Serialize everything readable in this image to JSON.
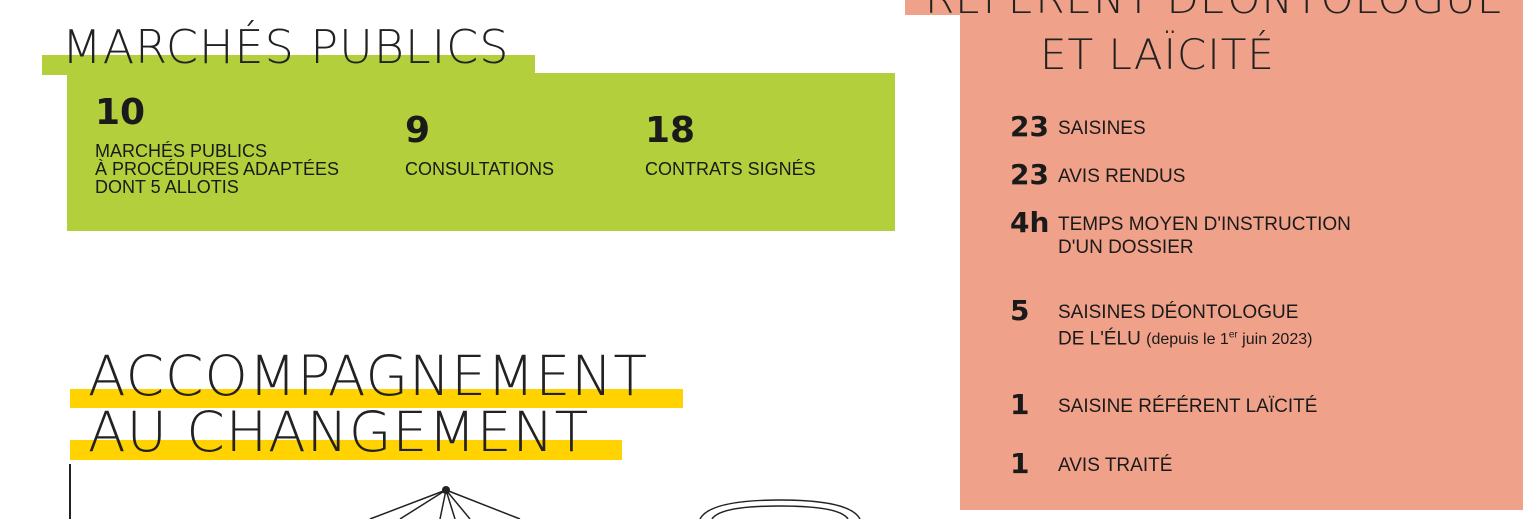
{
  "marches": {
    "title": "MARCHÉS PUBLICS",
    "stats": [
      {
        "number": "10",
        "lines": [
          "MARCHÉS PUBLICS",
          "À PROCÉDURES ADAPTÉES",
          "DONT 5 ALLOTIS"
        ]
      },
      {
        "number": "9",
        "lines": [
          "CONSULTATIONS"
        ]
      },
      {
        "number": "18",
        "lines": [
          "CONTRATS SIGNÉS"
        ]
      }
    ]
  },
  "accompagnement": {
    "title_lines": [
      "ACCOMPAGNEMENT",
      "AU CHANGEMENT"
    ]
  },
  "referent": {
    "title_lines": [
      "RÉFÉRENT DÉONTOLOGUE",
      "ET LAÏCITÉ"
    ],
    "items": [
      {
        "number": "23",
        "lines": [
          "SAISINES"
        ]
      },
      {
        "number": "23",
        "lines": [
          "AVIS RENDUS"
        ]
      },
      {
        "number": "4h",
        "lines": [
          "TEMPS MOYEN D'INSTRUCTION",
          "D'UN DOSSIER"
        ]
      },
      {
        "number": "5",
        "lines": [
          "SAISINES DÉONTOLOGUE",
          "DE L'ÉLU"
        ],
        "note": [
          "(depuis le 1",
          "er",
          " juin 2023)"
        ]
      },
      {
        "number": "1",
        "lines": [
          "SAISINE RÉFÉRENT LAÏCITÉ"
        ]
      },
      {
        "number": "1",
        "lines": [
          "AVIS TRAITÉ"
        ]
      }
    ]
  }
}
